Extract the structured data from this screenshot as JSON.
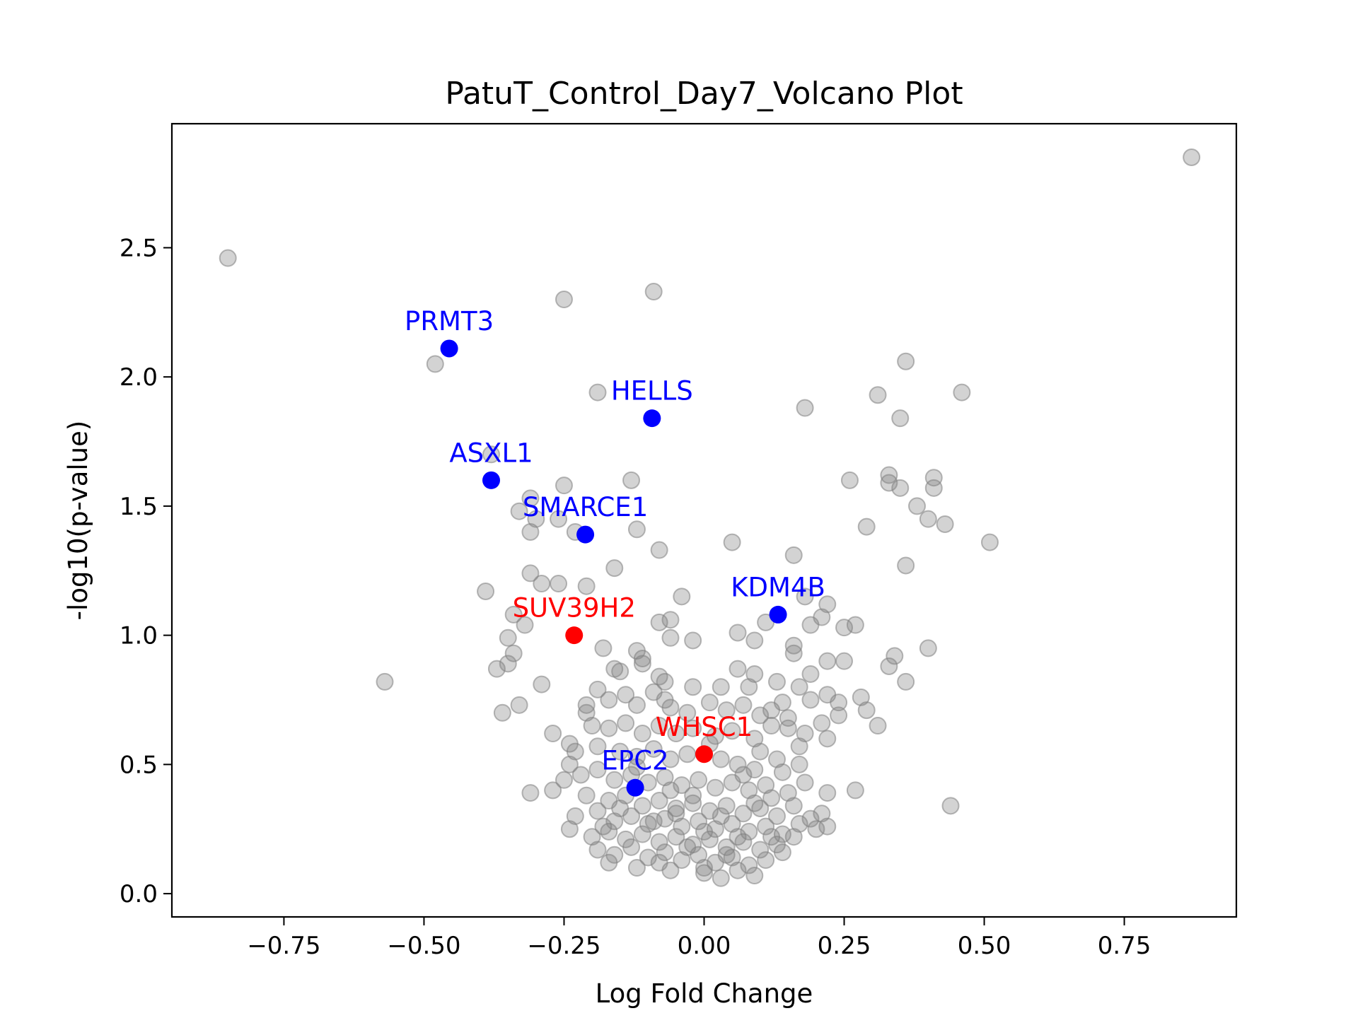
{
  "chart_data": {
    "type": "scatter",
    "title": "PatuT_Control_Day7_Volcano Plot",
    "xlabel": "Log Fold Change",
    "ylabel": "-log10(p-value)",
    "xlim": [
      -0.95,
      0.95
    ],
    "ylim": [
      -0.09,
      2.98
    ],
    "xticks": [
      -0.75,
      -0.5,
      -0.25,
      0.0,
      0.25,
      0.5,
      0.75
    ],
    "xtick_labels": [
      "−0.75",
      "−0.50",
      "−0.25",
      "0.00",
      "0.25",
      "0.50",
      "0.75"
    ],
    "yticks": [
      0.0,
      0.5,
      1.0,
      1.5,
      2.0,
      2.5
    ],
    "ytick_labels": [
      "0.0",
      "0.5",
      "1.0",
      "1.5",
      "2.0",
      "2.5"
    ],
    "grid": false,
    "background_color": "#808080",
    "background_points": [
      [
        -0.85,
        2.46
      ],
      [
        0.87,
        2.85
      ],
      [
        -0.25,
        2.3
      ],
      [
        -0.09,
        2.33
      ],
      [
        -0.48,
        2.05
      ],
      [
        -0.19,
        1.94
      ],
      [
        0.18,
        1.88
      ],
      [
        0.31,
        1.93
      ],
      [
        0.36,
        2.06
      ],
      [
        0.46,
        1.94
      ],
      [
        0.35,
        1.84
      ],
      [
        -0.38,
        1.7
      ],
      [
        -0.13,
        1.6
      ],
      [
        -0.25,
        1.58
      ],
      [
        0.26,
        1.6
      ],
      [
        0.33,
        1.62
      ],
      [
        0.33,
        1.59
      ],
      [
        0.35,
        1.57
      ],
      [
        0.41,
        1.61
      ],
      [
        0.41,
        1.57
      ],
      [
        0.38,
        1.5
      ],
      [
        0.4,
        1.45
      ],
      [
        0.43,
        1.43
      ],
      [
        0.51,
        1.36
      ],
      [
        0.29,
        1.42
      ],
      [
        -0.31,
        1.53
      ],
      [
        -0.33,
        1.48
      ],
      [
        -0.3,
        1.45
      ],
      [
        -0.26,
        1.45
      ],
      [
        -0.23,
        1.4
      ],
      [
        -0.31,
        1.4
      ],
      [
        -0.12,
        1.41
      ],
      [
        -0.08,
        1.33
      ],
      [
        0.05,
        1.36
      ],
      [
        0.16,
        1.31
      ],
      [
        0.36,
        1.27
      ],
      [
        -0.16,
        1.26
      ],
      [
        -0.31,
        1.24
      ],
      [
        -0.29,
        1.2
      ],
      [
        -0.26,
        1.2
      ],
      [
        -0.21,
        1.19
      ],
      [
        -0.39,
        1.17
      ],
      [
        -0.04,
        1.15
      ],
      [
        0.18,
        1.15
      ],
      [
        0.22,
        1.12
      ],
      [
        -0.34,
        1.08
      ],
      [
        -0.32,
        1.04
      ],
      [
        -0.08,
        1.05
      ],
      [
        -0.06,
        1.06
      ],
      [
        0.11,
        1.05
      ],
      [
        0.19,
        1.04
      ],
      [
        0.21,
        1.07
      ],
      [
        0.25,
        1.03
      ],
      [
        0.27,
        1.04
      ],
      [
        -0.35,
        0.99
      ],
      [
        -0.06,
        0.99
      ],
      [
        -0.02,
        0.98
      ],
      [
        0.06,
        1.01
      ],
      [
        0.09,
        0.98
      ],
      [
        0.16,
        0.96
      ],
      [
        0.16,
        0.93
      ],
      [
        0.22,
        0.9
      ],
      [
        0.25,
        0.9
      ],
      [
        0.4,
        0.95
      ],
      [
        -0.34,
        0.93
      ],
      [
        -0.35,
        0.89
      ],
      [
        -0.37,
        0.87
      ],
      [
        -0.18,
        0.95
      ],
      [
        -0.12,
        0.94
      ],
      [
        -0.11,
        0.91
      ],
      [
        -0.11,
        0.89
      ],
      [
        -0.16,
        0.87
      ],
      [
        -0.15,
        0.86
      ],
      [
        -0.08,
        0.84
      ],
      [
        -0.07,
        0.82
      ],
      [
        -0.02,
        0.8
      ],
      [
        0.03,
        0.8
      ],
      [
        0.06,
        0.87
      ],
      [
        0.08,
        0.8
      ],
      [
        0.09,
        0.85
      ],
      [
        0.13,
        0.82
      ],
      [
        0.17,
        0.8
      ],
      [
        0.19,
        0.85
      ],
      [
        0.19,
        0.75
      ],
      [
        0.22,
        0.77
      ],
      [
        0.24,
        0.74
      ],
      [
        0.28,
        0.76
      ],
      [
        0.33,
        0.88
      ],
      [
        0.34,
        0.92
      ],
      [
        0.36,
        0.82
      ],
      [
        -0.57,
        0.82
      ],
      [
        -0.29,
        0.81
      ],
      [
        -0.33,
        0.73
      ],
      [
        -0.36,
        0.7
      ],
      [
        -0.19,
        0.79
      ],
      [
        -0.17,
        0.75
      ],
      [
        -0.21,
        0.73
      ],
      [
        -0.14,
        0.77
      ],
      [
        -0.12,
        0.73
      ],
      [
        -0.09,
        0.78
      ],
      [
        -0.07,
        0.75
      ],
      [
        -0.06,
        0.72
      ],
      [
        -0.03,
        0.7
      ],
      [
        0.01,
        0.74
      ],
      [
        0.04,
        0.71
      ],
      [
        0.07,
        0.73
      ],
      [
        0.1,
        0.69
      ],
      [
        0.12,
        0.71
      ],
      [
        0.14,
        0.74
      ],
      [
        0.15,
        0.68
      ],
      [
        0.18,
        0.62
      ],
      [
        0.21,
        0.66
      ],
      [
        0.24,
        0.69
      ],
      [
        0.29,
        0.71
      ],
      [
        0.31,
        0.65
      ],
      [
        -0.21,
        0.7
      ],
      [
        -0.2,
        0.65
      ],
      [
        -0.17,
        0.64
      ],
      [
        -0.14,
        0.66
      ],
      [
        -0.11,
        0.62
      ],
      [
        -0.08,
        0.65
      ],
      [
        -0.05,
        0.62
      ],
      [
        -0.02,
        0.64
      ],
      [
        0.02,
        0.61
      ],
      [
        0.05,
        0.63
      ],
      [
        0.09,
        0.6
      ],
      [
        0.12,
        0.65
      ],
      [
        0.15,
        0.64
      ],
      [
        0.17,
        0.57
      ],
      [
        0.22,
        0.6
      ],
      [
        -0.27,
        0.62
      ],
      [
        -0.24,
        0.58
      ],
      [
        -0.23,
        0.55
      ],
      [
        -0.19,
        0.57
      ],
      [
        -0.15,
        0.55
      ],
      [
        -0.12,
        0.53
      ],
      [
        -0.09,
        0.56
      ],
      [
        -0.06,
        0.52
      ],
      [
        -0.03,
        0.54
      ],
      [
        0.03,
        0.52
      ],
      [
        0.06,
        0.5
      ],
      [
        0.09,
        0.48
      ],
      [
        0.13,
        0.52
      ],
      [
        0.14,
        0.47
      ],
      [
        0.17,
        0.5
      ],
      [
        -0.24,
        0.5
      ],
      [
        -0.22,
        0.46
      ],
      [
        -0.19,
        0.48
      ],
      [
        -0.16,
        0.44
      ],
      [
        -0.13,
        0.46
      ],
      [
        -0.1,
        0.43
      ],
      [
        -0.07,
        0.45
      ],
      [
        -0.04,
        0.42
      ],
      [
        -0.01,
        0.44
      ],
      [
        0.02,
        0.41
      ],
      [
        0.05,
        0.43
      ],
      [
        0.08,
        0.4
      ],
      [
        0.11,
        0.42
      ],
      [
        0.15,
        0.39
      ],
      [
        0.18,
        0.43
      ],
      [
        0.22,
        0.39
      ],
      [
        0.27,
        0.4
      ],
      [
        0.44,
        0.34
      ],
      [
        -0.31,
        0.39
      ],
      [
        -0.27,
        0.4
      ],
      [
        -0.25,
        0.44
      ],
      [
        -0.21,
        0.38
      ],
      [
        -0.17,
        0.36
      ],
      [
        -0.14,
        0.38
      ],
      [
        -0.11,
        0.34
      ],
      [
        -0.08,
        0.36
      ],
      [
        -0.05,
        0.33
      ],
      [
        -0.02,
        0.35
      ],
      [
        0.01,
        0.32
      ],
      [
        0.04,
        0.34
      ],
      [
        0.07,
        0.31
      ],
      [
        0.1,
        0.33
      ],
      [
        0.13,
        0.3
      ],
      [
        0.16,
        0.34
      ],
      [
        0.19,
        0.29
      ],
      [
        0.21,
        0.31
      ],
      [
        -0.23,
        0.3
      ],
      [
        -0.19,
        0.32
      ],
      [
        -0.16,
        0.28
      ],
      [
        -0.13,
        0.3
      ],
      [
        -0.1,
        0.27
      ],
      [
        -0.07,
        0.29
      ],
      [
        -0.04,
        0.26
      ],
      [
        -0.01,
        0.28
      ],
      [
        0.02,
        0.25
      ],
      [
        0.05,
        0.27
      ],
      [
        0.08,
        0.24
      ],
      [
        0.11,
        0.26
      ],
      [
        0.14,
        0.23
      ],
      [
        0.17,
        0.27
      ],
      [
        0.2,
        0.25
      ],
      [
        0.22,
        0.26
      ],
      [
        -0.24,
        0.25
      ],
      [
        -0.2,
        0.22
      ],
      [
        -0.17,
        0.24
      ],
      [
        -0.14,
        0.21
      ],
      [
        -0.11,
        0.23
      ],
      [
        -0.08,
        0.2
      ],
      [
        -0.05,
        0.22
      ],
      [
        -0.02,
        0.19
      ],
      [
        0.01,
        0.21
      ],
      [
        0.04,
        0.18
      ],
      [
        0.07,
        0.2
      ],
      [
        0.1,
        0.17
      ],
      [
        0.13,
        0.19
      ],
      [
        0.16,
        0.22
      ],
      [
        -0.19,
        0.17
      ],
      [
        -0.16,
        0.15
      ],
      [
        -0.13,
        0.18
      ],
      [
        -0.1,
        0.14
      ],
      [
        -0.07,
        0.16
      ],
      [
        -0.04,
        0.13
      ],
      [
        -0.01,
        0.15
      ],
      [
        0.02,
        0.12
      ],
      [
        0.05,
        0.14
      ],
      [
        0.08,
        0.11
      ],
      [
        0.11,
        0.13
      ],
      [
        0.14,
        0.16
      ],
      [
        -0.17,
        0.12
      ],
      [
        -0.12,
        0.1
      ],
      [
        -0.06,
        0.09
      ],
      [
        0.0,
        0.08
      ],
      [
        0.03,
        0.06
      ],
      [
        0.06,
        0.09
      ],
      [
        0.09,
        0.07
      ],
      [
        -0.09,
        0.28
      ],
      [
        -0.05,
        0.31
      ],
      [
        0.0,
        0.24
      ],
      [
        0.03,
        0.3
      ],
      [
        0.06,
        0.22
      ],
      [
        0.09,
        0.35
      ],
      [
        0.12,
        0.37
      ],
      [
        -0.15,
        0.33
      ],
      [
        -0.18,
        0.26
      ],
      [
        -0.02,
        0.38
      ],
      [
        0.0,
        0.1
      ],
      [
        -0.03,
        0.18
      ],
      [
        0.04,
        0.15
      ],
      [
        -0.08,
        0.12
      ],
      [
        0.12,
        0.22
      ],
      [
        -0.06,
        0.4
      ],
      [
        0.07,
        0.46
      ],
      [
        -0.12,
        0.49
      ],
      [
        0.1,
        0.55
      ],
      [
        0.01,
        0.58
      ]
    ],
    "highlighted": [
      {
        "name": "PRMT3",
        "x": -0.455,
        "y": 2.11,
        "color": "#0000ff"
      },
      {
        "name": "HELLS",
        "x": -0.093,
        "y": 1.84,
        "color": "#0000ff"
      },
      {
        "name": "ASXL1",
        "x": -0.38,
        "y": 1.6,
        "color": "#0000ff"
      },
      {
        "name": "SMARCE1",
        "x": -0.212,
        "y": 1.39,
        "color": "#0000ff"
      },
      {
        "name": "KDM4B",
        "x": 0.132,
        "y": 1.08,
        "color": "#0000ff"
      },
      {
        "name": "EPC2",
        "x": -0.123,
        "y": 0.41,
        "color": "#0000ff"
      },
      {
        "name": "SUV39H2",
        "x": -0.232,
        "y": 1.0,
        "color": "#ff0000"
      },
      {
        "name": "WHSC1",
        "x": 0.0,
        "y": 0.54,
        "color": "#ff0000"
      }
    ]
  }
}
